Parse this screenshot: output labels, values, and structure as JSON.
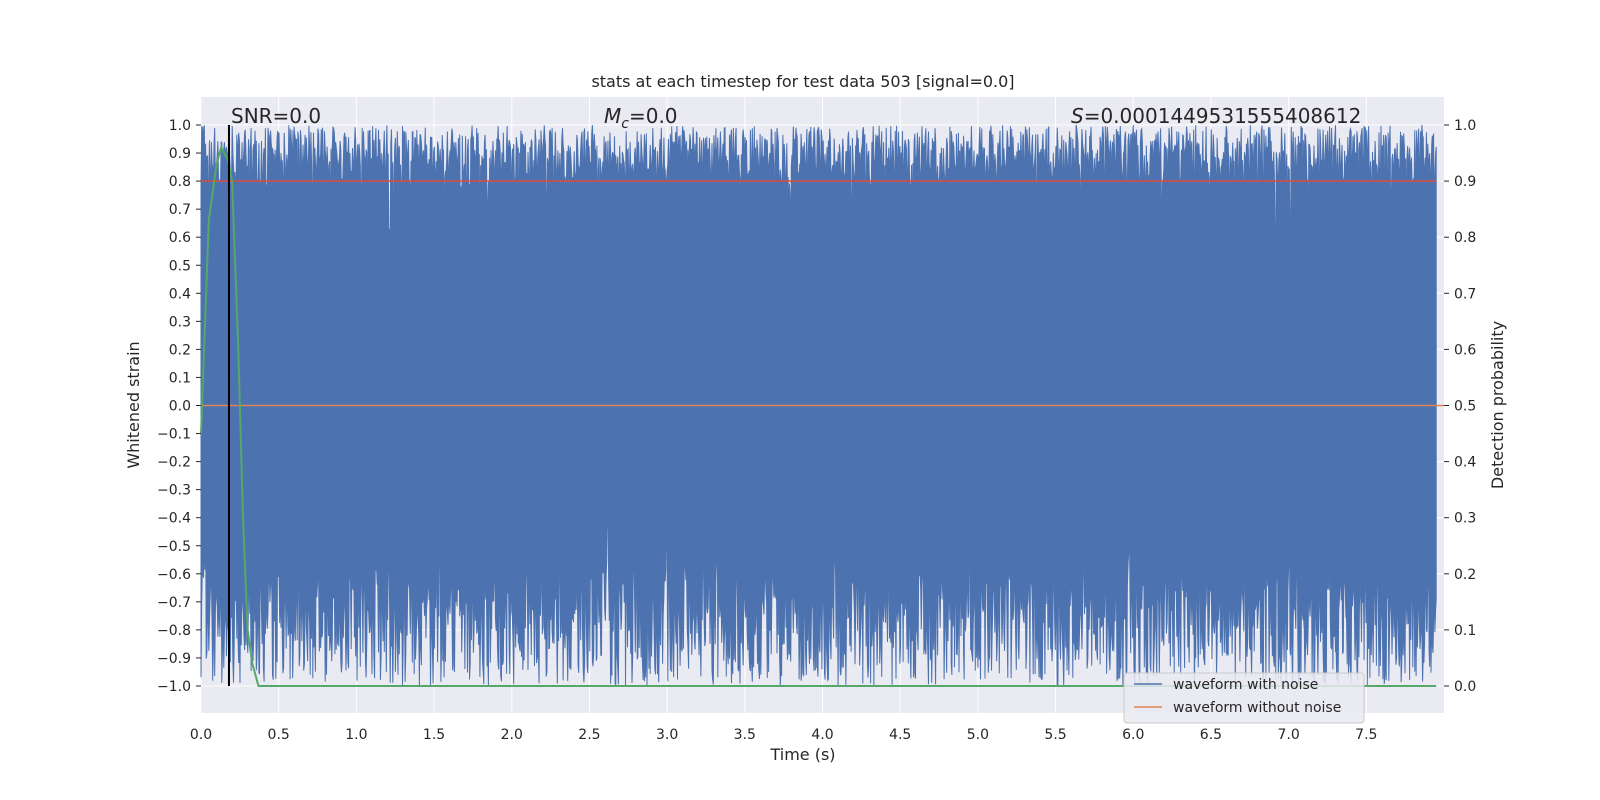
{
  "chart_data": {
    "type": "line",
    "title": "stats at each timestep for test data 503 [signal=0.0]",
    "xlabel": "Time (s)",
    "ylabel_left": "Whitened strain",
    "ylabel_right": "Detection probability",
    "xlim": [
      0.0,
      8.0
    ],
    "ylim_left": [
      -1.0,
      1.0
    ],
    "ylim_right": [
      0.0,
      1.0
    ],
    "x_ticks": [
      "0.0",
      "0.5",
      "1.0",
      "1.5",
      "2.0",
      "2.5",
      "3.0",
      "3.5",
      "4.0",
      "4.5",
      "5.0",
      "5.5",
      "6.0",
      "6.5",
      "7.0",
      "7.5"
    ],
    "y_left_ticks": [
      "1.0",
      "0.9",
      "0.8",
      "0.7",
      "0.6",
      "0.5",
      "0.4",
      "0.3",
      "0.2",
      "0.1",
      "0.0",
      "−0.1",
      "−0.2",
      "−0.3",
      "−0.4",
      "−0.5",
      "−0.6",
      "−0.7",
      "−0.8",
      "−0.9",
      "−1.0"
    ],
    "y_right_ticks": [
      "1.0",
      "0.9",
      "0.8",
      "0.7",
      "0.6",
      "0.5",
      "0.4",
      "0.3",
      "0.2",
      "0.1",
      "0.0"
    ],
    "grid": true,
    "annotations": {
      "snr": "SNR=0.0",
      "mc_main": "M",
      "mc_sub": "c",
      "mc_value": "=0.0",
      "s_main": "S",
      "s_value": "=0.0001449531555408612"
    },
    "legend": {
      "placement": "lower-right",
      "entries": [
        {
          "label": "waveform with noise",
          "color": "#4c72b0"
        },
        {
          "label": "waveform without noise",
          "color": "#dd8452"
        }
      ]
    },
    "series": [
      {
        "name": "waveform with noise",
        "color": "#4c72b0",
        "axis": "left",
        "kind": "noise-band",
        "envelope": [
          -1.0,
          1.0
        ]
      },
      {
        "name": "waveform without noise",
        "color": "#dd8452",
        "axis": "left",
        "x": [
          0.0,
          8.0
        ],
        "y": [
          0.0,
          0.0
        ]
      },
      {
        "color": "#55a868",
        "axis": "right",
        "x": [
          0.0,
          0.05,
          0.1,
          0.13,
          0.17,
          0.2,
          0.24,
          0.27,
          0.3,
          0.33,
          0.37,
          0.4,
          7.95
        ],
        "y": [
          0.45,
          0.83,
          0.93,
          0.96,
          0.94,
          0.9,
          0.6,
          0.3,
          0.1,
          0.04,
          0.0,
          0.0,
          0.0
        ]
      },
      {
        "color": "#dd4b39",
        "axis": "right",
        "x": [
          0.0,
          7.95
        ],
        "y": [
          0.9,
          0.9
        ]
      },
      {
        "color": "#000000",
        "axis": "left",
        "x": [
          0.18,
          0.18
        ],
        "y": [
          -1.0,
          1.0
        ]
      }
    ]
  }
}
